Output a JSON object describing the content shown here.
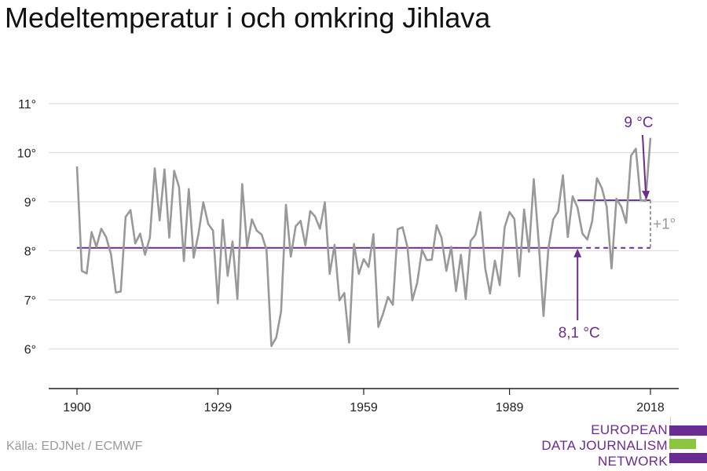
{
  "title": "Medeltemperatur i och omkring Jihlava",
  "source": "Källa: EDJNet / ECMWF",
  "logo": {
    "lines": [
      "EUROPEAN",
      "DATA JOURNALISM",
      "NETWORK"
    ],
    "colors": [
      "#6b2c91",
      "#8cc63f",
      "#6b2c91"
    ]
  },
  "colors": {
    "series": "#999999",
    "accent": "#6b2c91",
    "grid": "#dddddd",
    "axis": "#222222",
    "tick_text": "#222222",
    "diff": "#9a9a9a"
  },
  "chart_data": {
    "type": "line",
    "title": "Medeltemperatur i och omkring Jihlava",
    "xlabel": "",
    "ylabel": "",
    "x_ticks": [
      1900,
      1929,
      1959,
      1989,
      2018
    ],
    "x_tick_labels": [
      "1900",
      "1929",
      "1959",
      "1989",
      "2018"
    ],
    "y_ticks": [
      6,
      7,
      8,
      9,
      10,
      11
    ],
    "y_tick_labels": [
      "6°",
      "7°",
      "8°",
      "9°",
      "10°",
      "11°"
    ],
    "xlim": [
      1900,
      2018
    ],
    "ylim": [
      5,
      11
    ],
    "grid": true,
    "legend": "none",
    "series": [
      {
        "x": [
          1900,
          1901,
          1902,
          1903,
          1904,
          1905,
          1906,
          1907,
          1908,
          1909,
          1910,
          1911,
          1912,
          1913,
          1914,
          1915,
          1916,
          1917,
          1918,
          1919,
          1920,
          1921,
          1922,
          1923,
          1924,
          1925,
          1926,
          1927,
          1928,
          1929,
          1930,
          1931,
          1932,
          1933,
          1934,
          1935,
          1936,
          1937,
          1938,
          1939,
          1940,
          1941,
          1942,
          1943,
          1944,
          1945,
          1946,
          1947,
          1948,
          1949,
          1950,
          1951,
          1952,
          1953,
          1954,
          1955,
          1956,
          1957,
          1958,
          1959,
          1960,
          1961,
          1962,
          1963,
          1964,
          1965,
          1966,
          1967,
          1968,
          1969,
          1970,
          1971,
          1972,
          1973,
          1974,
          1975,
          1976,
          1977,
          1978,
          1979,
          1980,
          1981,
          1982,
          1983,
          1984,
          1985,
          1986,
          1987,
          1988,
          1989,
          1990,
          1991,
          1992,
          1993,
          1994,
          1995,
          1996,
          1997,
          1998,
          1999,
          2000,
          2001,
          2002,
          2003,
          2004,
          2005,
          2006,
          2007,
          2008,
          2009,
          2010,
          2011,
          2012,
          2013,
          2014,
          2015,
          2016,
          2017,
          2018
        ],
        "values": [
          9.72,
          7.59,
          7.54,
          8.38,
          8.08,
          8.45,
          8.28,
          7.93,
          7.15,
          7.17,
          8.69,
          8.83,
          8.15,
          8.35,
          7.92,
          8.27,
          9.68,
          8.62,
          9.66,
          8.27,
          9.63,
          9.3,
          7.79,
          9.26,
          7.86,
          8.35,
          8.99,
          8.55,
          8.41,
          6.93,
          8.63,
          7.49,
          8.19,
          7.02,
          9.36,
          8.09,
          8.64,
          8.41,
          8.33,
          8.02,
          6.06,
          6.23,
          6.76,
          8.94,
          7.88,
          8.5,
          8.61,
          8.11,
          8.81,
          8.7,
          8.45,
          8.99,
          7.53,
          8.12,
          6.99,
          7.14,
          6.13,
          8.14,
          7.53,
          7.83,
          7.67,
          8.34,
          6.45,
          6.72,
          7.06,
          6.9,
          8.44,
          8.48,
          8.07,
          6.99,
          7.35,
          8.02,
          7.81,
          7.82,
          8.52,
          8.27,
          7.59,
          8.08,
          7.18,
          7.92,
          7.02,
          8.2,
          8.33,
          8.79,
          7.64,
          7.13,
          7.8,
          7.3,
          8.48,
          8.79,
          8.65,
          7.48,
          8.84,
          7.98,
          9.46,
          8.19,
          6.67,
          8.05,
          8.64,
          8.8,
          9.54,
          8.28,
          9.11,
          8.88,
          8.35,
          8.23,
          8.6,
          9.48,
          9.28,
          8.9,
          7.64,
          9.06,
          8.9,
          8.57,
          9.94,
          10.08,
          9.03,
          9.02,
          10.3
        ]
      }
    ],
    "reference_lines": [
      {
        "value": 8.06,
        "from": 1900,
        "to": 2018,
        "label": "8,1 °C"
      },
      {
        "value": 9.03,
        "from": 2003,
        "to": 2018,
        "label": "9 °C"
      }
    ],
    "difference_label": "+1°",
    "annotations": [
      {
        "text": "8,1 °C",
        "at_x": 2003,
        "at_y": 8.06
      },
      {
        "text": "9 °C",
        "at_x": 2018,
        "at_y": 9.03
      }
    ]
  }
}
